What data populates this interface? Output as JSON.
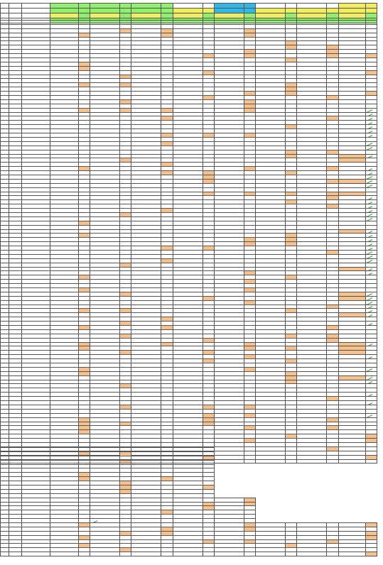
{
  "notes": [
    "",
    "",
    "",
    "",
    "",
    ""
  ],
  "header_rows": [
    [
      "",
      "",
      "",
      "",
      "",
      "",
      "",
      "",
      "",
      "",
      "",
      "",
      "",
      "",
      "",
      "",
      "",
      "",
      ""
    ],
    [
      "",
      "",
      "",
      "",
      "",
      "",
      "",
      "",
      "",
      "",
      "",
      "",
      "",
      "",
      "",
      "",
      "",
      "",
      ""
    ],
    [
      "",
      "",
      "",
      "",
      "",
      "",
      "",
      "",
      "",
      "",
      "",
      "",
      "",
      "",
      "",
      "",
      "",
      "",
      ""
    ],
    [
      "",
      "",
      "",
      "",
      "",
      "",
      "",
      "",
      "",
      "",
      "",
      "",
      "",
      "",
      "",
      "",
      "",
      "",
      ""
    ]
  ],
  "colors": {
    "green": "#90ee70",
    "cyan": "#33b7e6",
    "yellow": "#f0ee60",
    "orange": "#f5c28f",
    "red": "#d40000",
    "check": "#1f8a1f"
  },
  "main_rows_count": 106,
  "lower_rows_count": 26
}
